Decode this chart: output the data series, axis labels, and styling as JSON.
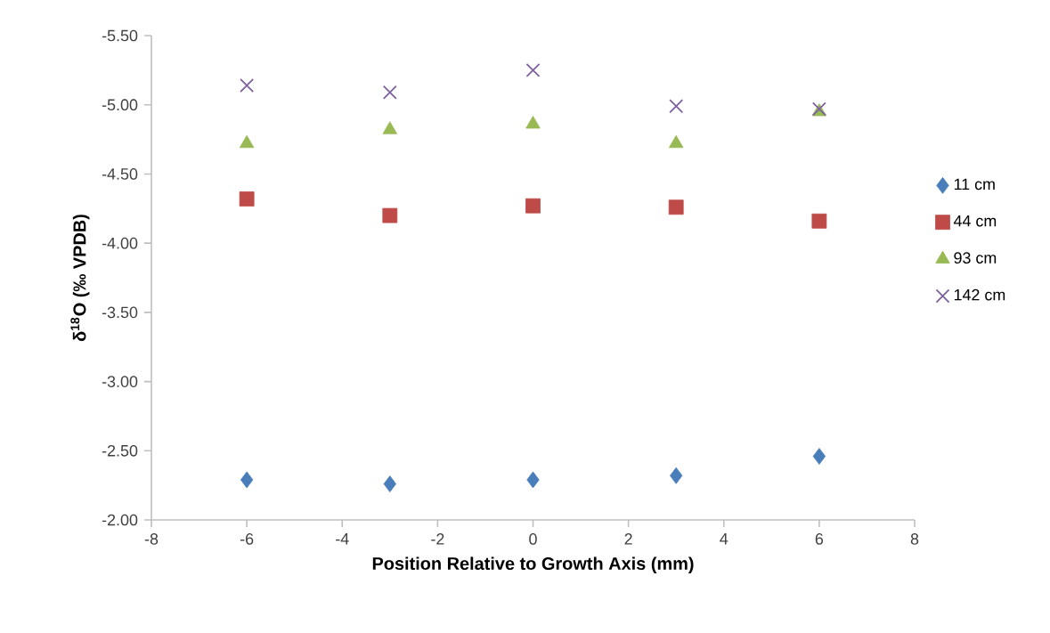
{
  "chart_data": {
    "type": "scatter",
    "xlabel": "Position Relative to Growth Axis (mm)",
    "ylabel": "δ$^{18}$O (‰ VPDB)",
    "x": [
      -6,
      -3,
      0,
      3,
      6
    ],
    "series": [
      {
        "name": "11 cm",
        "color": "#4a7ebb",
        "marker": "diamond",
        "values": [
          -2.29,
          -2.26,
          -2.29,
          -2.32,
          -2.46
        ]
      },
      {
        "name": "44 cm",
        "color": "#be4b48",
        "marker": "square",
        "values": [
          -4.32,
          -4.2,
          -4.27,
          -4.26,
          -4.16
        ]
      },
      {
        "name": "93 cm",
        "color": "#98b954",
        "marker": "triangle",
        "values": [
          -4.72,
          -4.82,
          -4.86,
          -4.72,
          -4.95
        ]
      },
      {
        "name": "142 cm",
        "color": "#7d60a0",
        "marker": "cross",
        "values": [
          -5.14,
          -5.09,
          -5.25,
          -4.99,
          -4.97
        ]
      }
    ],
    "xlim": [
      -8,
      8
    ],
    "xticks": [
      -8,
      -6,
      -4,
      -2,
      0,
      2,
      4,
      6,
      8
    ],
    "ylim": [
      -2,
      -5.5
    ],
    "yticks": [
      {
        "value": -2,
        "label": "-2.00"
      },
      {
        "value": -2.5,
        "label": "-2.50"
      },
      {
        "value": -3,
        "label": "-3.00"
      },
      {
        "value": -3.5,
        "label": "-3.50"
      },
      {
        "value": -4,
        "label": "-4.00"
      },
      {
        "value": -4.5,
        "label": "-4.50"
      },
      {
        "value": -5,
        "label": "-5.00"
      },
      {
        "value": -5.5,
        "label": "-5.50"
      }
    ],
    "grid": false,
    "legend": "right"
  }
}
